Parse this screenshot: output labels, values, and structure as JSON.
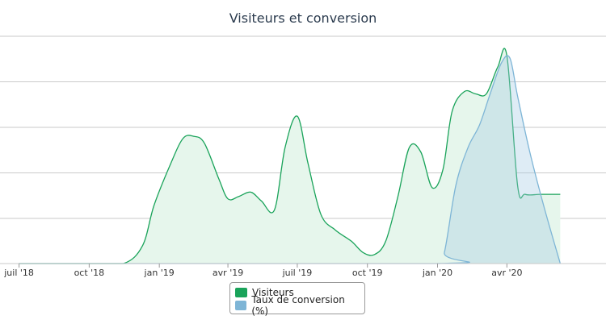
{
  "chart_data": {
    "type": "area",
    "title": "Visiteurs et conversion",
    "x_ticks": [
      "juil '18",
      "oct '18",
      "jan '19",
      "avr '19",
      "juil '19",
      "oct '19",
      "jan '20",
      "avr '20"
    ],
    "ylim": [
      0,
      100
    ],
    "grid": true,
    "legend_position": "bottom-center",
    "series": [
      {
        "name": "Visiteurs",
        "color": "#1aa35a",
        "fill": "#e6f6ec",
        "points": [
          [
            "2018-07-01",
            0
          ],
          [
            "2018-08-15",
            0
          ],
          [
            "2018-10-01",
            0
          ],
          [
            "2018-11-15",
            0
          ],
          [
            "2018-12-10",
            8
          ],
          [
            "2018-12-25",
            26
          ],
          [
            "2019-01-15",
            44
          ],
          [
            "2019-02-01",
            56
          ],
          [
            "2019-02-15",
            57
          ],
          [
            "2019-03-01",
            54
          ],
          [
            "2019-03-20",
            38
          ],
          [
            "2019-04-01",
            29
          ],
          [
            "2019-04-15",
            30
          ],
          [
            "2019-05-01",
            32
          ],
          [
            "2019-05-15",
            28
          ],
          [
            "2019-06-01",
            24
          ],
          [
            "2019-06-15",
            52
          ],
          [
            "2019-07-01",
            66
          ],
          [
            "2019-07-15",
            45
          ],
          [
            "2019-08-01",
            22
          ],
          [
            "2019-08-20",
            15
          ],
          [
            "2019-09-10",
            10
          ],
          [
            "2019-09-25",
            5
          ],
          [
            "2019-10-10",
            4
          ],
          [
            "2019-10-25",
            10
          ],
          [
            "2019-11-10",
            30
          ],
          [
            "2019-11-25",
            52
          ],
          [
            "2019-12-10",
            50
          ],
          [
            "2019-12-25",
            34
          ],
          [
            "2020-01-08",
            42
          ],
          [
            "2020-01-20",
            68
          ],
          [
            "2020-02-05",
            77
          ],
          [
            "2020-02-20",
            76
          ],
          [
            "2020-03-05",
            76
          ],
          [
            "2020-03-20",
            88
          ],
          [
            "2020-04-01",
            93
          ],
          [
            "2020-04-15",
            35
          ],
          [
            "2020-04-25",
            31
          ],
          [
            "2020-05-15",
            31
          ],
          [
            "2020-06-10",
            31
          ]
        ]
      },
      {
        "name": "Taux de conversion (%)",
        "color": "#7eb5d6",
        "fill": "rgba(160,200,225,0.35)",
        "points": [
          [
            "2018-07-01",
            0
          ],
          [
            "2019-12-31",
            0
          ],
          [
            "2020-01-10",
            5
          ],
          [
            "2020-01-25",
            35
          ],
          [
            "2020-02-10",
            52
          ],
          [
            "2020-02-25",
            62
          ],
          [
            "2020-03-10",
            76
          ],
          [
            "2020-03-25",
            90
          ],
          [
            "2020-04-05",
            92
          ],
          [
            "2020-04-15",
            75
          ],
          [
            "2020-05-01",
            50
          ],
          [
            "2020-05-20",
            25
          ],
          [
            "2020-06-10",
            0
          ]
        ]
      }
    ]
  }
}
